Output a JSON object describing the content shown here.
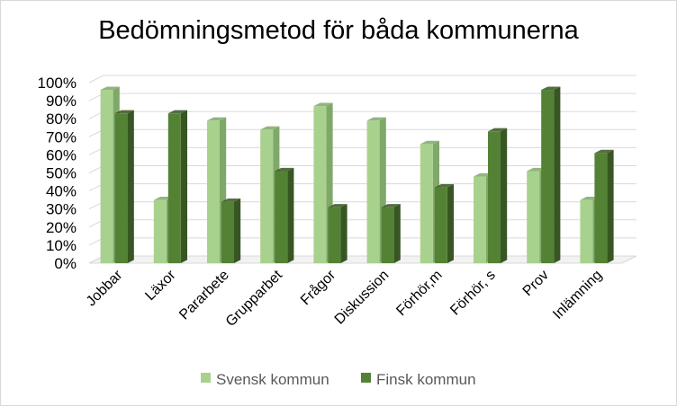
{
  "chart_data": {
    "type": "bar",
    "title": "Bedömningsmetod för båda kommunerna",
    "categories": [
      "Jobbar",
      "Läxor",
      "Pararbete",
      "Grupparbet",
      "Frågor",
      "Diskussion",
      "Förhör,m",
      "Förhör, s",
      "Prov",
      "Inlämning"
    ],
    "series": [
      {
        "name": "Svensk kommun",
        "values": [
          96,
          35,
          79,
          74,
          87,
          79,
          66,
          48,
          51,
          35
        ],
        "color": "#a9d18e",
        "dark_color": "#7fa869"
      },
      {
        "name": "Finsk kommun",
        "values": [
          83,
          83,
          34,
          51,
          31,
          31,
          42,
          73,
          96,
          61
        ],
        "color": "#548235",
        "dark_color": "#375623"
      }
    ],
    "ylim": [
      0,
      100
    ],
    "yticks": [
      "0%",
      "10%",
      "20%",
      "30%",
      "40%",
      "50%",
      "60%",
      "70%",
      "80%",
      "90%",
      "100%"
    ],
    "grid": true,
    "legend_position": "bottom",
    "style": "3d-clustered-column"
  }
}
